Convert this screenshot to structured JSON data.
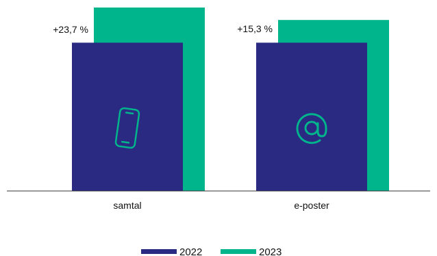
{
  "chart_data": {
    "type": "bar",
    "title": "",
    "xlabel": "",
    "ylabel": "",
    "categories": [
      "samtal",
      "e-poster"
    ],
    "category_icons": [
      "smartphone-icon",
      "at-sign-icon"
    ],
    "series": [
      {
        "name": "2022",
        "values": [
          100,
          100
        ],
        "color": "#2b2a82"
      },
      {
        "name": "2023",
        "values": [
          123.7,
          115.3
        ],
        "color": "#00b48c"
      }
    ],
    "annotations": [
      "+23,7 %",
      "+15,3 %"
    ],
    "ylim": [
      0,
      130
    ],
    "grid": false,
    "legend_position": "bottom-center"
  },
  "colors": {
    "icon": "#00b48c",
    "axis": "#333333"
  }
}
